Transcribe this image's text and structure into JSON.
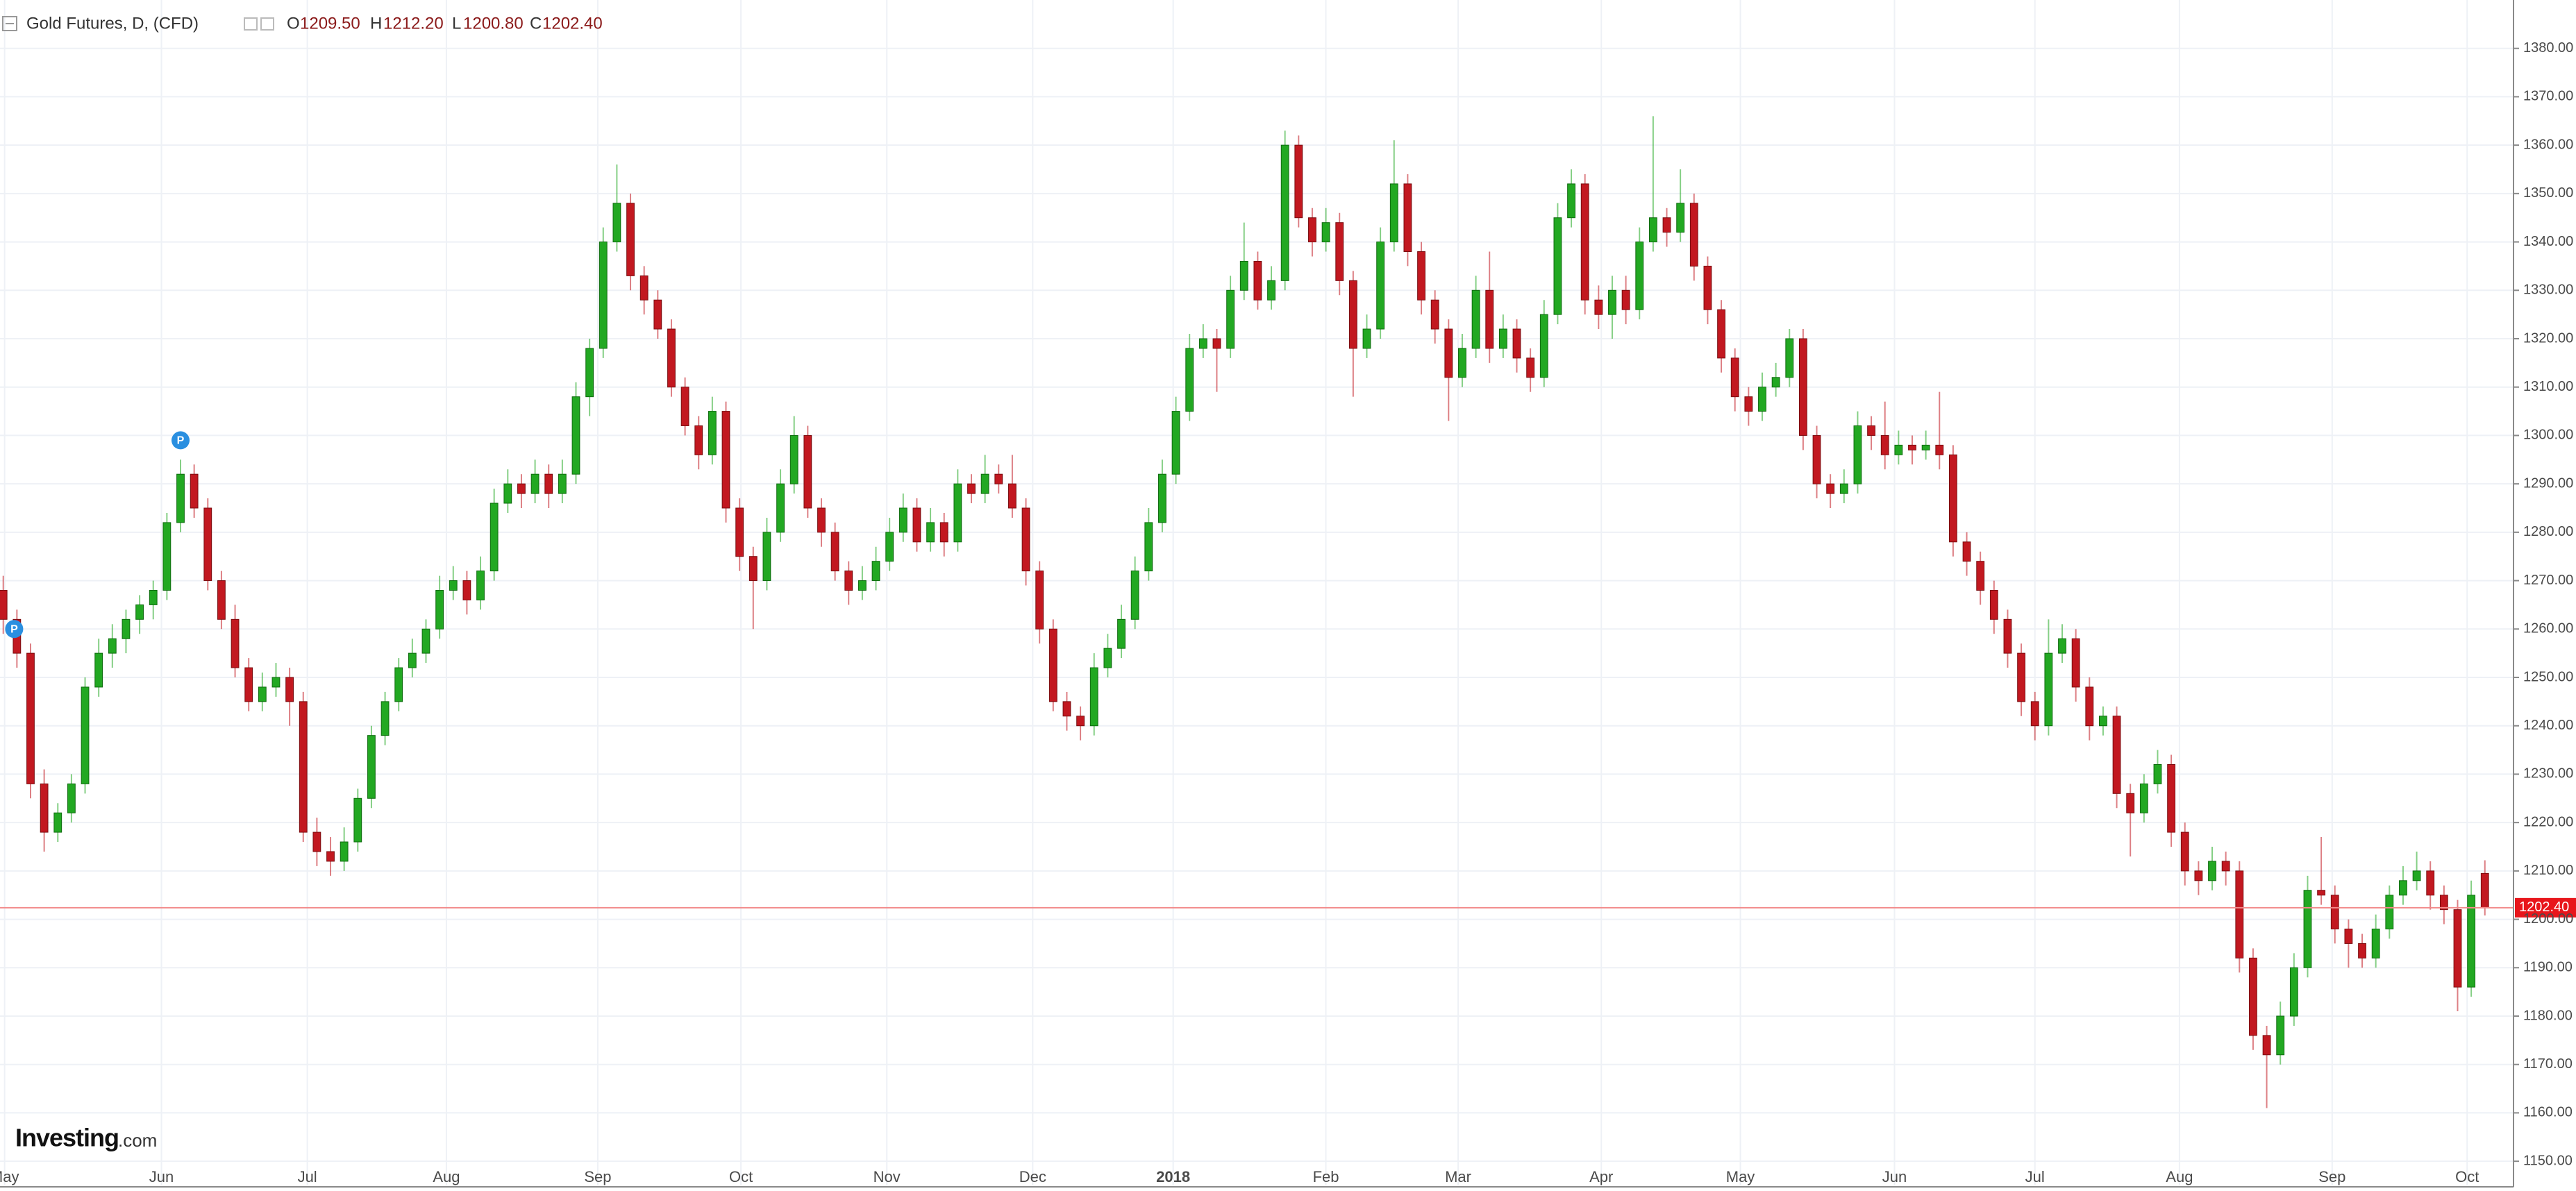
{
  "chart_data": {
    "type": "candlestick",
    "header": {
      "symbol": "Gold Futures, D, (CFD)",
      "o_label": "O",
      "o": "1209.50",
      "h_label": "H",
      "h": "1212.20",
      "l_label": "L",
      "l": "1200.80",
      "c_label": "C",
      "c": "1202.40"
    },
    "logo": {
      "name": "Investing",
      "suffix": ".com"
    },
    "up_color": "#22a822",
    "down_color": "#c21820",
    "last_price": {
      "value": 1202.4,
      "label": "1202.40"
    },
    "grid": true,
    "xlim": [
      -0.24,
      184.1
    ],
    "xticks": [
      {
        "value": 0.1,
        "label": "May"
      },
      {
        "value": 11.6,
        "label": "Jun"
      },
      {
        "value": 22.3,
        "label": "Jul"
      },
      {
        "value": 32.5,
        "label": "Aug"
      },
      {
        "value": 43.6,
        "label": "Sep"
      },
      {
        "value": 54.1,
        "label": "Oct"
      },
      {
        "value": 64.8,
        "label": "Nov"
      },
      {
        "value": 75.5,
        "label": "Dec"
      },
      {
        "value": 85.8,
        "label": "2018"
      },
      {
        "value": 97,
        "label": "Feb"
      },
      {
        "value": 106.7,
        "label": "Mar"
      },
      {
        "value": 117.2,
        "label": "Apr"
      },
      {
        "value": 127.4,
        "label": "May"
      },
      {
        "value": 138.7,
        "label": "Jun"
      },
      {
        "value": 149,
        "label": "Jul"
      },
      {
        "value": 159.6,
        "label": "Aug"
      },
      {
        "value": 170.8,
        "label": "Sep"
      },
      {
        "value": 180.7,
        "label": "Oct"
      }
    ],
    "ylim": [
      1145,
      1390
    ],
    "yticks": [
      {
        "value": 1150,
        "label": "1150.00"
      },
      {
        "value": 1160,
        "label": "1160.00"
      },
      {
        "value": 1170,
        "label": "1170.00"
      },
      {
        "value": 1180,
        "label": "1180.00"
      },
      {
        "value": 1190,
        "label": "1190.00"
      },
      {
        "value": 1200,
        "label": "1200.00"
      },
      {
        "value": 1210,
        "label": "1210.00"
      },
      {
        "value": 1220,
        "label": "1220.00"
      },
      {
        "value": 1230,
        "label": "1230.00"
      },
      {
        "value": 1240,
        "label": "1240.00"
      },
      {
        "value": 1250,
        "label": "1250.00"
      },
      {
        "value": 1260,
        "label": "1260.00"
      },
      {
        "value": 1270,
        "label": "1270.00"
      },
      {
        "value": 1280,
        "label": "1280.00"
      },
      {
        "value": 1290,
        "label": "1290.00"
      },
      {
        "value": 1300,
        "label": "1300.00"
      },
      {
        "value": 1310,
        "label": "1310.00"
      },
      {
        "value": 1320,
        "label": "1320.00"
      },
      {
        "value": 1330,
        "label": "1330.00"
      },
      {
        "value": 1340,
        "label": "1340.00"
      },
      {
        "value": 1350,
        "label": "1350.00"
      },
      {
        "value": 1360,
        "label": "1360.00"
      },
      {
        "value": 1370,
        "label": "1370.00"
      },
      {
        "value": 1380,
        "label": "1380.00"
      }
    ],
    "markers": [
      {
        "index": 0.8,
        "price": 1260,
        "label": "P"
      },
      {
        "index": 13,
        "price": 1299,
        "label": "P"
      }
    ],
    "ohlc": [
      [
        1268,
        1271,
        1259,
        1262
      ],
      [
        1262,
        1264,
        1252,
        1255
      ],
      [
        1255,
        1257,
        1225,
        1228
      ],
      [
        1228,
        1231,
        1214,
        1218
      ],
      [
        1218,
        1224,
        1216,
        1222
      ],
      [
        1222,
        1230,
        1220,
        1228
      ],
      [
        1228,
        1250,
        1226,
        1248
      ],
      [
        1248,
        1258,
        1246,
        1255
      ],
      [
        1255,
        1261,
        1252,
        1258
      ],
      [
        1258,
        1264,
        1255,
        1262
      ],
      [
        1262,
        1267,
        1259,
        1265
      ],
      [
        1265,
        1270,
        1262,
        1268
      ],
      [
        1268,
        1284,
        1266,
        1282
      ],
      [
        1282,
        1295,
        1280,
        1292
      ],
      [
        1292,
        1294,
        1283,
        1285
      ],
      [
        1285,
        1287,
        1268,
        1270
      ],
      [
        1270,
        1272,
        1260,
        1262
      ],
      [
        1262,
        1265,
        1250,
        1252
      ],
      [
        1252,
        1254,
        1243,
        1245
      ],
      [
        1245,
        1251,
        1243,
        1248
      ],
      [
        1248,
        1253,
        1246,
        1250
      ],
      [
        1250,
        1252,
        1240,
        1245
      ],
      [
        1245,
        1247,
        1216,
        1218
      ],
      [
        1218,
        1221,
        1211,
        1214
      ],
      [
        1214,
        1217,
        1209,
        1212
      ],
      [
        1212,
        1219,
        1210,
        1216
      ],
      [
        1216,
        1227,
        1214,
        1225
      ],
      [
        1225,
        1240,
        1223,
        1238
      ],
      [
        1238,
        1247,
        1236,
        1245
      ],
      [
        1245,
        1254,
        1243,
        1252
      ],
      [
        1252,
        1258,
        1250,
        1255
      ],
      [
        1255,
        1262,
        1253,
        1260
      ],
      [
        1260,
        1271,
        1258,
        1268
      ],
      [
        1268,
        1273,
        1266,
        1270
      ],
      [
        1270,
        1272,
        1263,
        1266
      ],
      [
        1266,
        1275,
        1264,
        1272
      ],
      [
        1272,
        1289,
        1270,
        1286
      ],
      [
        1286,
        1293,
        1284,
        1290
      ],
      [
        1290,
        1292,
        1285,
        1288
      ],
      [
        1288,
        1295,
        1286,
        1292
      ],
      [
        1292,
        1294,
        1285,
        1288
      ],
      [
        1288,
        1295,
        1286,
        1292
      ],
      [
        1292,
        1311,
        1290,
        1308
      ],
      [
        1308,
        1320,
        1304,
        1318
      ],
      [
        1318,
        1343,
        1316,
        1340
      ],
      [
        1340,
        1356,
        1338,
        1348
      ],
      [
        1348,
        1350,
        1330,
        1333
      ],
      [
        1333,
        1335,
        1325,
        1328
      ],
      [
        1328,
        1330,
        1320,
        1322
      ],
      [
        1322,
        1324,
        1308,
        1310
      ],
      [
        1310,
        1312,
        1300,
        1302
      ],
      [
        1302,
        1304,
        1293,
        1296
      ],
      [
        1296,
        1308,
        1294,
        1305
      ],
      [
        1305,
        1307,
        1282,
        1285
      ],
      [
        1285,
        1287,
        1272,
        1275
      ],
      [
        1275,
        1277,
        1260,
        1270
      ],
      [
        1270,
        1283,
        1268,
        1280
      ],
      [
        1280,
        1293,
        1278,
        1290
      ],
      [
        1290,
        1304,
        1288,
        1300
      ],
      [
        1300,
        1302,
        1283,
        1285
      ],
      [
        1285,
        1287,
        1277,
        1280
      ],
      [
        1280,
        1282,
        1270,
        1272
      ],
      [
        1272,
        1274,
        1265,
        1268
      ],
      [
        1268,
        1273,
        1266,
        1270
      ],
      [
        1270,
        1277,
        1268,
        1274
      ],
      [
        1274,
        1283,
        1272,
        1280
      ],
      [
        1280,
        1288,
        1278,
        1285
      ],
      [
        1285,
        1287,
        1276,
        1278
      ],
      [
        1278,
        1285,
        1276,
        1282
      ],
      [
        1282,
        1284,
        1275,
        1278
      ],
      [
        1278,
        1293,
        1276,
        1290
      ],
      [
        1290,
        1292,
        1286,
        1288
      ],
      [
        1288,
        1296,
        1286,
        1292
      ],
      [
        1292,
        1294,
        1288,
        1290
      ],
      [
        1290,
        1296,
        1283,
        1285
      ],
      [
        1285,
        1287,
        1269,
        1272
      ],
      [
        1272,
        1274,
        1257,
        1260
      ],
      [
        1260,
        1262,
        1243,
        1245
      ],
      [
        1245,
        1247,
        1239,
        1242
      ],
      [
        1242,
        1244,
        1237,
        1240
      ],
      [
        1240,
        1255,
        1238,
        1252
      ],
      [
        1252,
        1259,
        1250,
        1256
      ],
      [
        1256,
        1265,
        1254,
        1262
      ],
      [
        1262,
        1275,
        1260,
        1272
      ],
      [
        1272,
        1285,
        1270,
        1282
      ],
      [
        1282,
        1295,
        1280,
        1292
      ],
      [
        1292,
        1308,
        1290,
        1305
      ],
      [
        1305,
        1321,
        1303,
        1318
      ],
      [
        1318,
        1323,
        1316,
        1320
      ],
      [
        1320,
        1322,
        1309,
        1318
      ],
      [
        1318,
        1333,
        1316,
        1330
      ],
      [
        1330,
        1344,
        1328,
        1336
      ],
      [
        1336,
        1338,
        1326,
        1328
      ],
      [
        1328,
        1335,
        1326,
        1332
      ],
      [
        1332,
        1363,
        1330,
        1360
      ],
      [
        1360,
        1362,
        1343,
        1345
      ],
      [
        1345,
        1347,
        1337,
        1340
      ],
      [
        1340,
        1347,
        1338,
        1344
      ],
      [
        1344,
        1346,
        1329,
        1332
      ],
      [
        1332,
        1334,
        1308,
        1318
      ],
      [
        1318,
        1325,
        1316,
        1322
      ],
      [
        1322,
        1343,
        1320,
        1340
      ],
      [
        1340,
        1361,
        1338,
        1352
      ],
      [
        1352,
        1354,
        1335,
        1338
      ],
      [
        1338,
        1340,
        1325,
        1328
      ],
      [
        1328,
        1330,
        1319,
        1322
      ],
      [
        1322,
        1324,
        1303,
        1312
      ],
      [
        1312,
        1321,
        1310,
        1318
      ],
      [
        1318,
        1333,
        1316,
        1330
      ],
      [
        1330,
        1338,
        1315,
        1318
      ],
      [
        1318,
        1325,
        1316,
        1322
      ],
      [
        1322,
        1324,
        1313,
        1316
      ],
      [
        1316,
        1318,
        1309,
        1312
      ],
      [
        1312,
        1328,
        1310,
        1325
      ],
      [
        1325,
        1348,
        1323,
        1345
      ],
      [
        1345,
        1355,
        1343,
        1352
      ],
      [
        1352,
        1354,
        1325,
        1328
      ],
      [
        1328,
        1331,
        1322,
        1325
      ],
      [
        1325,
        1333,
        1320,
        1330
      ],
      [
        1330,
        1333,
        1323,
        1326
      ],
      [
        1326,
        1343,
        1324,
        1340
      ],
      [
        1340,
        1366,
        1338,
        1345
      ],
      [
        1345,
        1347,
        1339,
        1342
      ],
      [
        1342,
        1355,
        1340,
        1348
      ],
      [
        1348,
        1350,
        1332,
        1335
      ],
      [
        1335,
        1337,
        1323,
        1326
      ],
      [
        1326,
        1328,
        1313,
        1316
      ],
      [
        1316,
        1318,
        1305,
        1308
      ],
      [
        1308,
        1310,
        1302,
        1305
      ],
      [
        1305,
        1313,
        1303,
        1310
      ],
      [
        1310,
        1315,
        1308,
        1312
      ],
      [
        1312,
        1322,
        1310,
        1320
      ],
      [
        1320,
        1322,
        1297,
        1300
      ],
      [
        1300,
        1302,
        1287,
        1290
      ],
      [
        1290,
        1292,
        1285,
        1288
      ],
      [
        1288,
        1293,
        1286,
        1290
      ],
      [
        1290,
        1305,
        1288,
        1302
      ],
      [
        1302,
        1304,
        1297,
        1300
      ],
      [
        1300,
        1307,
        1293,
        1296
      ],
      [
        1296,
        1301,
        1294,
        1298
      ],
      [
        1298,
        1300,
        1294,
        1297
      ],
      [
        1297,
        1301,
        1295,
        1298
      ],
      [
        1298,
        1309,
        1293,
        1296
      ],
      [
        1296,
        1298,
        1275,
        1278
      ],
      [
        1278,
        1280,
        1271,
        1274
      ],
      [
        1274,
        1276,
        1265,
        1268
      ],
      [
        1268,
        1270,
        1259,
        1262
      ],
      [
        1262,
        1264,
        1252,
        1255
      ],
      [
        1255,
        1257,
        1242,
        1245
      ],
      [
        1245,
        1247,
        1237,
        1240
      ],
      [
        1240,
        1262,
        1238,
        1255
      ],
      [
        1255,
        1261,
        1253,
        1258
      ],
      [
        1258,
        1260,
        1245,
        1248
      ],
      [
        1248,
        1250,
        1237,
        1240
      ],
      [
        1240,
        1244,
        1238,
        1242
      ],
      [
        1242,
        1244,
        1223,
        1226
      ],
      [
        1226,
        1228,
        1213,
        1222
      ],
      [
        1222,
        1230,
        1220,
        1228
      ],
      [
        1228,
        1235,
        1226,
        1232
      ],
      [
        1232,
        1234,
        1215,
        1218
      ],
      [
        1218,
        1220,
        1207,
        1210
      ],
      [
        1210,
        1212,
        1205,
        1208
      ],
      [
        1208,
        1215,
        1206,
        1212
      ],
      [
        1212,
        1214,
        1207,
        1210
      ],
      [
        1210,
        1212,
        1189,
        1192
      ],
      [
        1192,
        1194,
        1173,
        1176
      ],
      [
        1176,
        1178,
        1161,
        1172
      ],
      [
        1172,
        1183,
        1170,
        1180
      ],
      [
        1180,
        1193,
        1178,
        1190
      ],
      [
        1190,
        1209,
        1188,
        1206
      ],
      [
        1206,
        1217,
        1203,
        1205
      ],
      [
        1205,
        1207,
        1195,
        1198
      ],
      [
        1198,
        1200,
        1190,
        1195
      ],
      [
        1195,
        1197,
        1190,
        1192
      ],
      [
        1192,
        1201,
        1190,
        1198
      ],
      [
        1198,
        1207,
        1196,
        1205
      ],
      [
        1205,
        1211,
        1203,
        1208
      ],
      [
        1208,
        1214,
        1206,
        1210
      ],
      [
        1210,
        1212,
        1202,
        1205
      ],
      [
        1205,
        1207,
        1199,
        1202
      ],
      [
        1202,
        1204,
        1181,
        1186
      ],
      [
        1186,
        1208,
        1184,
        1205
      ],
      [
        1209.5,
        1212.2,
        1200.8,
        1202.4
      ]
    ]
  }
}
